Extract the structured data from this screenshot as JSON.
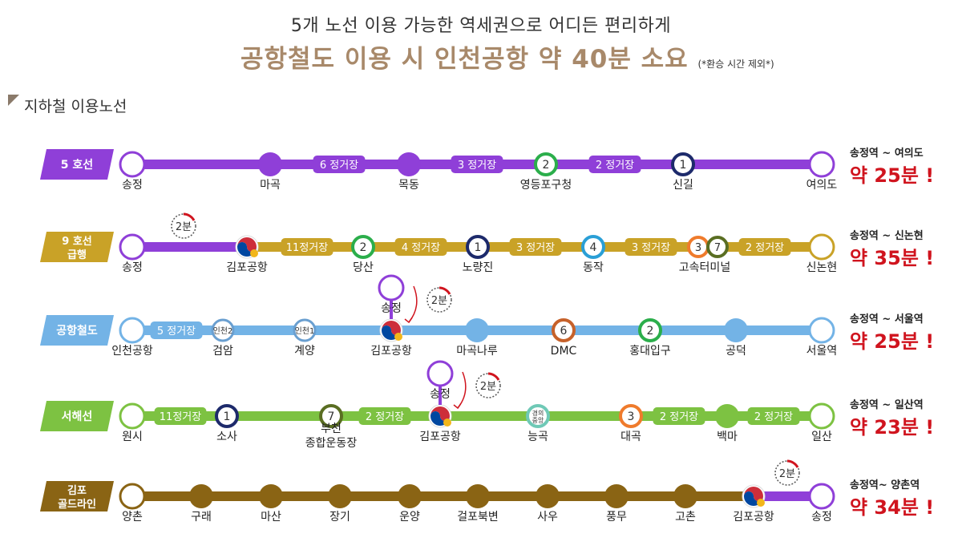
{
  "header": {
    "line1": "5개 노선 이용 가능한 역세권으로 어디든 편리하게",
    "line2": "공항철도 이용 시 인천공항 약 40분 소요",
    "note": "(*환승 시간 제외*)"
  },
  "section_title": "지하철 이용노선",
  "transfer_time_label": "2분",
  "lines": [
    {
      "name": [
        "5 호선"
      ],
      "color": "#8f3fd8",
      "badge_color": "#8f3fd8",
      "stations": [
        {
          "name": "송정",
          "icon": "endpoint-circle"
        },
        {
          "name": "마곡",
          "icon": "station-dot"
        },
        {
          "name": "목동",
          "icon": "station-dot"
        },
        {
          "name": "영등포구청",
          "icon": "line-2-badge",
          "badge": "2"
        },
        {
          "name": "신길",
          "icon": "line-1-badge",
          "badge": "1"
        },
        {
          "name": "여의도",
          "icon": "endpoint-circle"
        }
      ],
      "segment_labels": [
        "6 정거장",
        "3 정거장",
        "2 정거장"
      ],
      "route": "송정역 ~ 여의도",
      "time": "약 25분",
      "transfer_station": "",
      "transfer_start": ""
    },
    {
      "name": [
        "9 호선",
        "급행"
      ],
      "color": "#c9a227",
      "badge_color": "#c9a227",
      "stations": [
        {
          "name": "송정",
          "icon": "endpoint-circle"
        },
        {
          "name": "김포공항",
          "icon": "taegeuk-icon"
        },
        {
          "name": "당산",
          "icon": "line-2-badge",
          "badge": "2"
        },
        {
          "name": "노량진",
          "icon": "line-1-badge",
          "badge": "1"
        },
        {
          "name": "동작",
          "icon": "line-4-badge",
          "badge": "4"
        },
        {
          "name": "고속터미널",
          "icon": "line-3-7-badge",
          "badge": "3 7"
        },
        {
          "name": "신논현",
          "icon": "endpoint-circle"
        }
      ],
      "segment_labels": [
        "11정거장",
        "4 정거장",
        "3 정거장",
        "3 정거장",
        "2 정거장"
      ],
      "route": "송정역 ~ 신논현",
      "time": "약 35분",
      "transfer_station": "",
      "transfer_start": ""
    },
    {
      "name": [
        "공항철도"
      ],
      "color": "#73b3e6",
      "badge_color": "#73b3e6",
      "stations": [
        {
          "name": "인천공항",
          "icon": "endpoint-circle"
        },
        {
          "name": "검암",
          "icon": "incheon-2-badge",
          "badge": "인천2"
        },
        {
          "name": "계양",
          "icon": "incheon-1-badge",
          "badge": "인천1"
        },
        {
          "name": "김포공항",
          "icon": "taegeuk-icon"
        },
        {
          "name": "마곡나루",
          "icon": "station-dot"
        },
        {
          "name": "DMC",
          "icon": "line-6-badge",
          "badge": "6"
        },
        {
          "name": "홍대입구",
          "icon": "line-2-badge",
          "badge": "2"
        },
        {
          "name": "공덕",
          "icon": "station-dot"
        },
        {
          "name": "서울역",
          "icon": "endpoint-circle"
        }
      ],
      "segment_labels": [
        "5 정거장"
      ],
      "route": "송정역 ~ 서울역",
      "time": "약 25분",
      "transfer_station": "김포공항",
      "transfer_start": "송정"
    },
    {
      "name": [
        "서해선"
      ],
      "color": "#7dc242",
      "badge_color": "#7dc242",
      "stations": [
        {
          "name": "원시",
          "icon": "endpoint-circle"
        },
        {
          "name": "소사",
          "icon": "line-1-badge",
          "badge": "1"
        },
        {
          "name": "부천\n종합운동장",
          "icon": "line-7-badge",
          "badge": "7"
        },
        {
          "name": "김포공항",
          "icon": "taegeuk-icon"
        },
        {
          "name": "능곡",
          "icon": "gyeongui-badge",
          "badge": "경의\n중앙"
        },
        {
          "name": "대곡",
          "icon": "line-3-badge",
          "badge": "3"
        },
        {
          "name": "백마",
          "icon": "station-dot"
        },
        {
          "name": "일산",
          "icon": "endpoint-circle"
        }
      ],
      "segment_labels": [
        "11정거장",
        "2 정거장",
        "2 정거장",
        "2 정거장"
      ],
      "route": "송정역 ~ 일산역",
      "time": "약 23분",
      "transfer_station": "김포공항",
      "transfer_start": "송정"
    },
    {
      "name": [
        "김포",
        "골드라인"
      ],
      "color": "#8a6414",
      "badge_color": "#8a6414",
      "stations": [
        {
          "name": "양촌",
          "icon": "endpoint-circle"
        },
        {
          "name": "구래",
          "icon": "station-dot"
        },
        {
          "name": "마산",
          "icon": "station-dot"
        },
        {
          "name": "장기",
          "icon": "station-dot"
        },
        {
          "name": "운양",
          "icon": "station-dot"
        },
        {
          "name": "걸포북변",
          "icon": "station-dot"
        },
        {
          "name": "사우",
          "icon": "station-dot"
        },
        {
          "name": "풍무",
          "icon": "station-dot"
        },
        {
          "name": "고촌",
          "icon": "station-dot"
        },
        {
          "name": "김포공항",
          "icon": "taegeuk-icon"
        },
        {
          "name": "송정",
          "icon": "endpoint-circle"
        }
      ],
      "segment_labels": [],
      "route": "송정역~ 양촌역",
      "time": "약 34분",
      "transfer_station": "",
      "transfer_start": ""
    }
  ],
  "colors": {
    "line_1": "#1d2a6b",
    "line_2": "#2bae4b",
    "line_3": "#ef7b2c",
    "line_4": "#2a9fd6",
    "line_6": "#c6612a",
    "line_7": "#5a6e22",
    "transfer_purple": "#8f3fd8",
    "time_red": "#d0141e",
    "header_brown": "#a8896a"
  }
}
